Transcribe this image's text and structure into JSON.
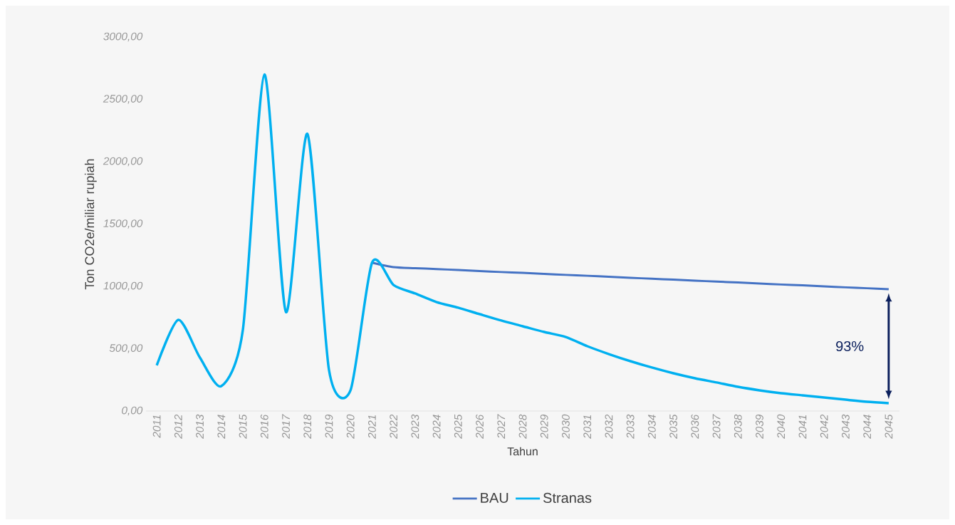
{
  "chart_data": {
    "type": "line",
    "xlabel": "Tahun",
    "ylabel": "Ton CO2e/miliar rupiah",
    "x": [
      2011,
      2012,
      2013,
      2014,
      2015,
      2016,
      2017,
      2018,
      2019,
      2020,
      2021,
      2022,
      2023,
      2024,
      2025,
      2026,
      2027,
      2028,
      2029,
      2030,
      2031,
      2032,
      2033,
      2034,
      2035,
      2036,
      2037,
      2038,
      2039,
      2040,
      2041,
      2042,
      2043,
      2044,
      2045
    ],
    "series": [
      {
        "name": "BAU",
        "color": "#4472c4",
        "values": [
          null,
          null,
          null,
          null,
          null,
          null,
          null,
          null,
          null,
          null,
          1190,
          1154,
          1146,
          1139,
          1131,
          1123,
          1115,
          1108,
          1100,
          1092,
          1085,
          1077,
          1069,
          1061,
          1054,
          1046,
          1038,
          1031,
          1023,
          1015,
          1008,
          1000,
          992,
          985,
          977
        ]
      },
      {
        "name": "Stranas",
        "color": "#00b0f0",
        "values": [
          366,
          731,
          430,
          200,
          651,
          2700,
          794,
          2223,
          330,
          166,
          1190,
          1011,
          943,
          874,
          829,
          777,
          726,
          680,
          634,
          594,
          520,
          457,
          400,
          349,
          303,
          263,
          229,
          194,
          166,
          143,
          126,
          109,
          91,
          74,
          63
        ]
      }
    ],
    "xlim": [
      2010.5,
      2045.5
    ],
    "xticks": [
      2011,
      2012,
      2013,
      2014,
      2015,
      2016,
      2017,
      2018,
      2019,
      2020,
      2021,
      2022,
      2023,
      2024,
      2025,
      2026,
      2027,
      2028,
      2029,
      2030,
      2031,
      2032,
      2033,
      2034,
      2035,
      2036,
      2037,
      2038,
      2039,
      2040,
      2041,
      2042,
      2043,
      2044,
      2045
    ],
    "ylim": [
      0,
      3000
    ],
    "yticks": [
      {
        "value": 0,
        "label": "0,00"
      },
      {
        "value": 500,
        "label": "500,00"
      },
      {
        "value": 1000,
        "label": "1000,00"
      },
      {
        "value": 1500,
        "label": "1500,00"
      },
      {
        "value": 2000,
        "label": "2000,00"
      },
      {
        "value": 2500,
        "label": "2500,00"
      },
      {
        "value": 3000,
        "label": "3000,00"
      }
    ],
    "annotations": [
      "93%"
    ],
    "legend": "bottom",
    "grid": false,
    "marker": "none",
    "line_style": "solid"
  }
}
